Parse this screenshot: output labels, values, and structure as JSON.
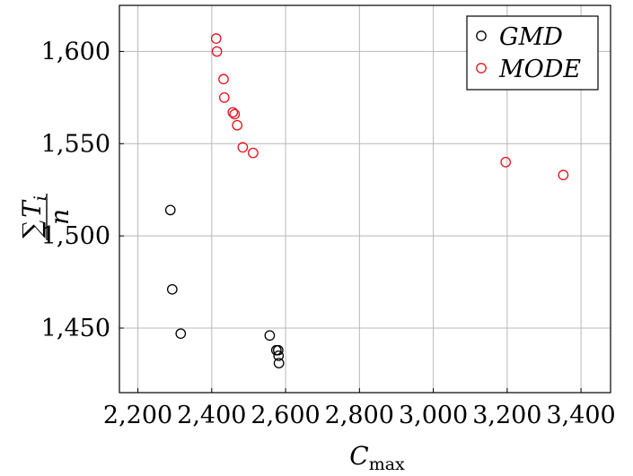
{
  "chart_data": {
    "type": "scatter",
    "xlabel": "C_max",
    "ylabel": "∑ T_i / n",
    "xlim": [
      2150,
      3480
    ],
    "ylim": [
      1415,
      1625
    ],
    "x_ticks": [
      2200,
      2400,
      2600,
      2800,
      3000,
      3200,
      3400
    ],
    "x_tick_labels": [
      "2,200",
      "2,400",
      "2,600",
      "2,800",
      "3,000",
      "3,200",
      "3,400"
    ],
    "y_ticks": [
      1450,
      1500,
      1550,
      1600
    ],
    "y_tick_labels": [
      "1,450",
      "1,500",
      "1,550",
      "1,600"
    ],
    "grid": true,
    "legend_position": "top-right",
    "series": [
      {
        "name": "GMD",
        "color": "#000000",
        "marker": "circle-open",
        "x": [
          2288,
          2293,
          2316,
          2557,
          2575,
          2580,
          2581,
          2582
        ],
        "y": [
          1514,
          1471,
          1447,
          1446,
          1438,
          1438,
          1435,
          1431
        ]
      },
      {
        "name": "MODE",
        "color": "#e8101a",
        "marker": "circle-open",
        "x": [
          2412,
          2414,
          2432,
          2434,
          2457,
          2462,
          2469,
          2484,
          2512,
          3196,
          3352
        ],
        "y": [
          1607,
          1600,
          1585,
          1575,
          1567,
          1566,
          1560,
          1548,
          1545,
          1540,
          1533
        ]
      }
    ]
  }
}
